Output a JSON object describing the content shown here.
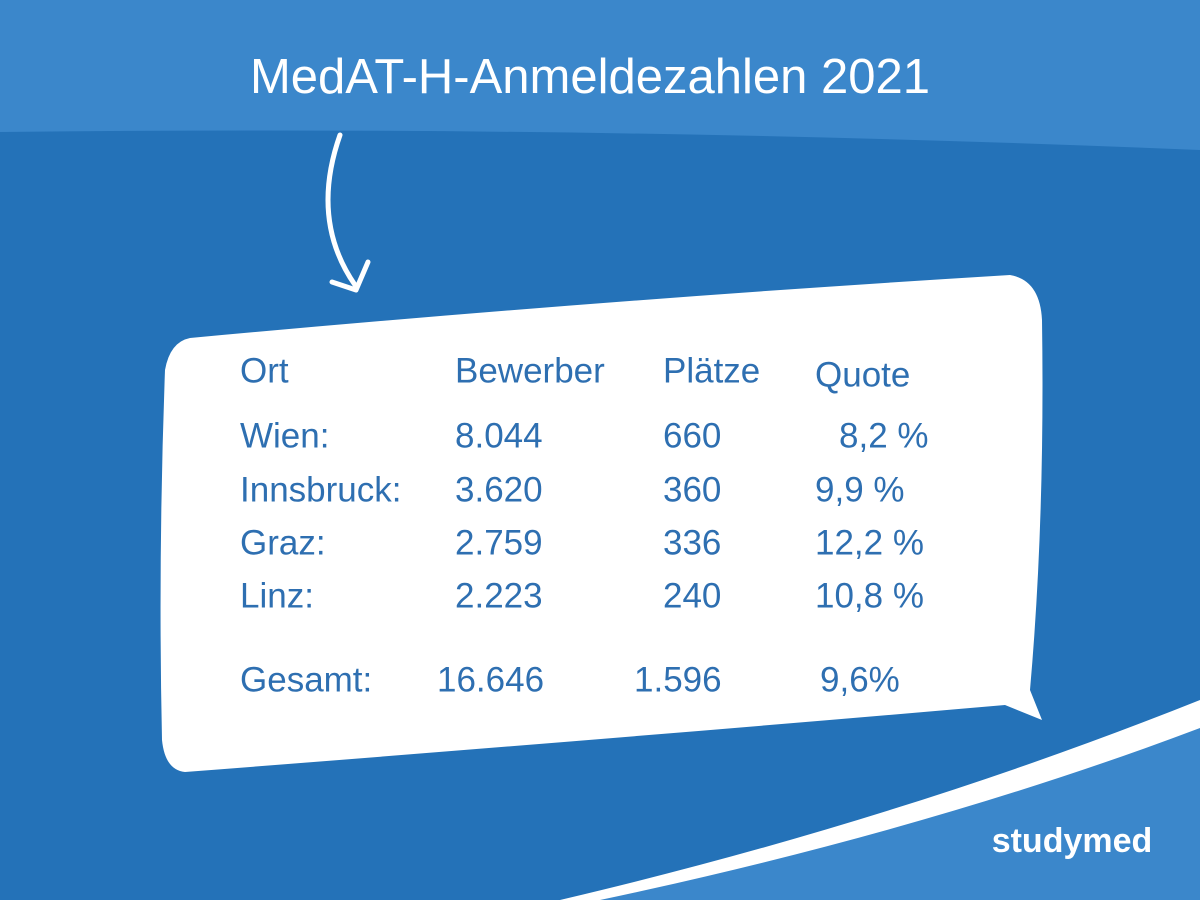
{
  "header": {
    "title": "MedAT-H-Anmeldezahlen 2021"
  },
  "table": {
    "columns": [
      "Ort",
      "Bewerber",
      "Plätze",
      "Quote"
    ],
    "rows": [
      [
        "Wien:",
        "8.044",
        "660",
        "8,2 %"
      ],
      [
        "Innsbruck:",
        "3.620",
        "360",
        "9,9 %"
      ],
      [
        "Graz:",
        "2.759",
        "336",
        "12,2 %"
      ],
      [
        "Linz:",
        "2.223",
        "240",
        "10,8 %"
      ]
    ],
    "total": [
      "Gesamt:",
      "16.646",
      "1.596",
      "9,6%"
    ]
  },
  "footer": {
    "logo": "studymed"
  }
}
